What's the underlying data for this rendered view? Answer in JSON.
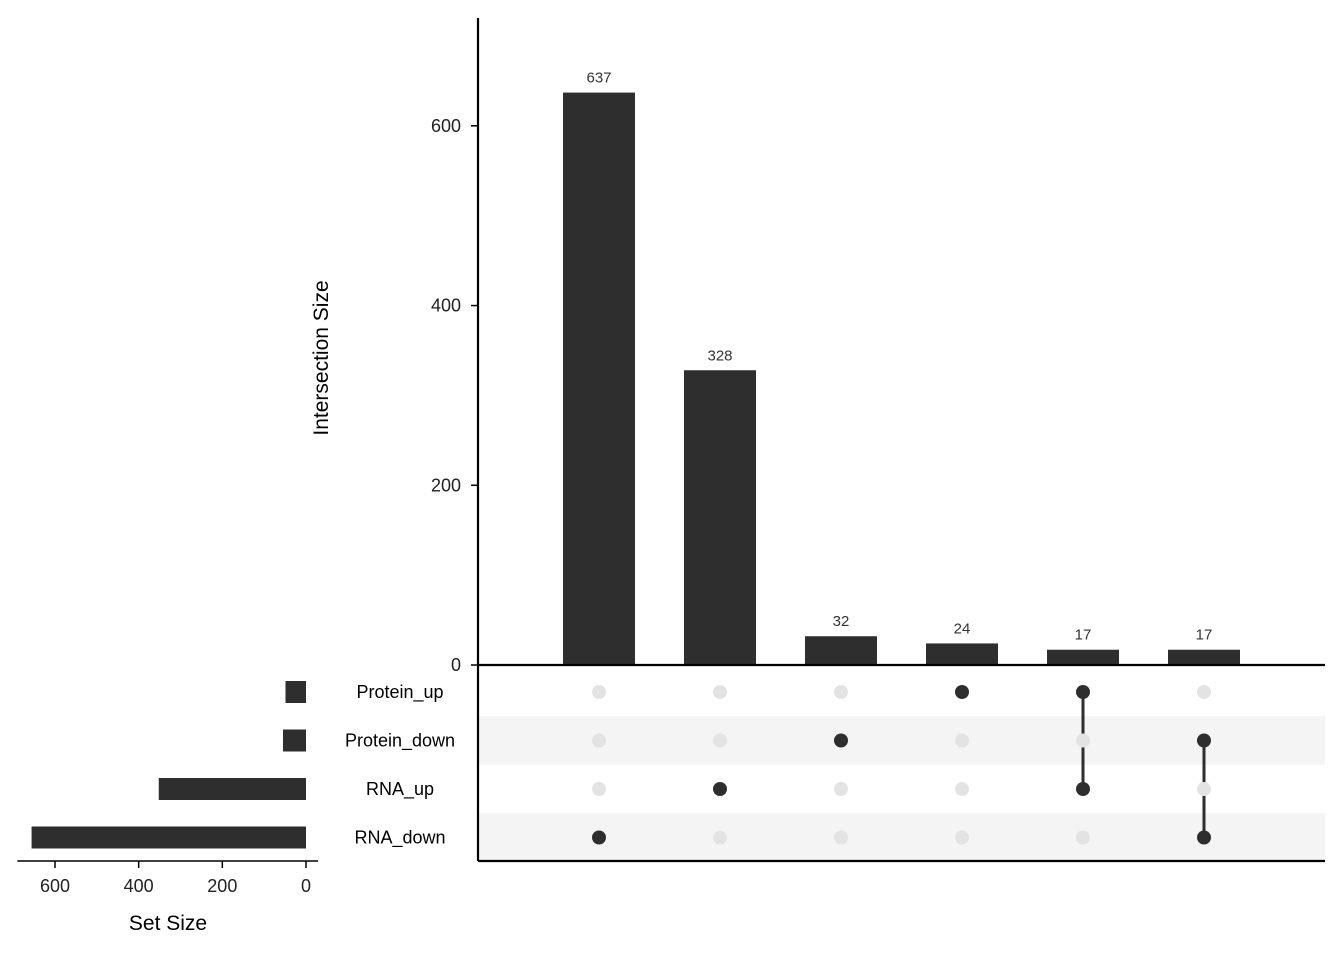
{
  "chart_data": {
    "type": "upset",
    "intersections": {
      "ylabel": "Intersection Size",
      "ylim": [
        0,
        720
      ],
      "yticks": [
        0,
        200,
        400,
        600
      ],
      "values": [
        637,
        328,
        32,
        24,
        17,
        17
      ],
      "labels": [
        "637",
        "328",
        "32",
        "24",
        "17",
        "17"
      ],
      "members": [
        [
          "RNA_down"
        ],
        [
          "RNA_up"
        ],
        [
          "Protein_down"
        ],
        [
          "Protein_up"
        ],
        [
          "Protein_up",
          "RNA_up"
        ],
        [
          "Protein_down",
          "RNA_down"
        ]
      ]
    },
    "sets": {
      "names": [
        "Protein_up",
        "Protein_down",
        "RNA_up",
        "RNA_down"
      ],
      "sizes": [
        49,
        55,
        352,
        656
      ],
      "xlabel": "Set Size",
      "xticks": [
        600,
        400,
        200,
        0
      ],
      "xlim": [
        0,
        690
      ]
    },
    "colors": {
      "bar": "#2e2e2e",
      "dot_active": "#2e2e2e",
      "dot_inactive": "#e3e3e3",
      "stripe": "#f4f4f4"
    }
  }
}
